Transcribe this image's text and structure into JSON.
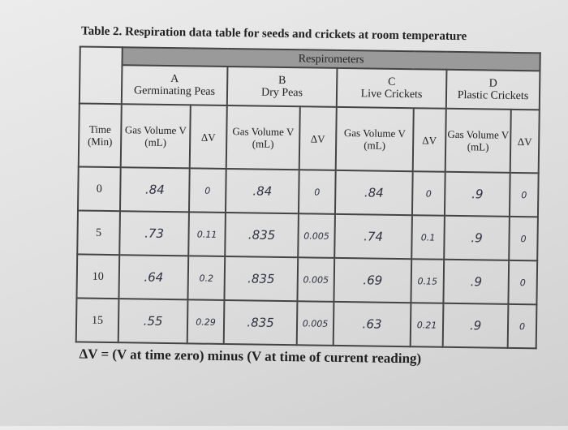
{
  "title": "Table 2. Respiration data table for seeds and crickets at room temperature",
  "table": {
    "super_header": "Respirometers",
    "groups": [
      {
        "letter": "A",
        "name": "Germinating Peas"
      },
      {
        "letter": "B",
        "name": "Dry Peas"
      },
      {
        "letter": "C",
        "name": "Live Crickets"
      },
      {
        "letter": "D",
        "name": "Plastic Crickets"
      }
    ],
    "time_header": "Time (Min)",
    "volume_header": "Gas Volume V (mL)",
    "delta_header": "ΔV",
    "rows": [
      [
        "0",
        ".84",
        "0",
        ".84",
        "0",
        ".84",
        "0",
        ".9",
        "0"
      ],
      [
        "5",
        ".73",
        "0.11",
        ".835",
        "0.005",
        ".74",
        "0.1",
        ".9",
        "0"
      ],
      [
        "10",
        ".64",
        "0.2",
        ".835",
        "0.005",
        ".69",
        "0.15",
        ".9",
        "0"
      ],
      [
        "15",
        ".55",
        "0.29",
        ".835",
        "0.005",
        ".63",
        "0.21",
        ".9",
        "0"
      ]
    ]
  },
  "footnote": "ΔV = (V at time zero) minus (V at time of current reading)"
}
